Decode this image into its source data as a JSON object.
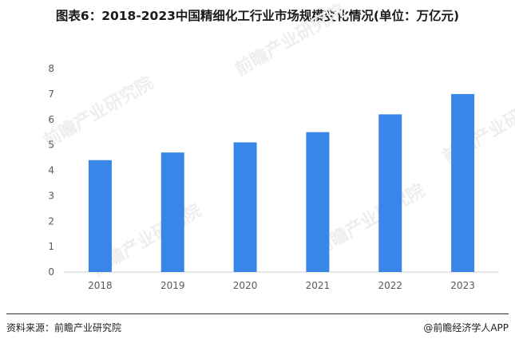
{
  "header": {
    "title": "图表6：2018-2023中国精细化工行业市场规模变化情况(单位：万亿元)"
  },
  "footer": {
    "source": "资料来源：前瞻产业研究院",
    "credit": "@前瞻经济学人APP"
  },
  "watermark": {
    "text": "前瞻产业研究院"
  },
  "colors": {
    "bar": "#3a85e8",
    "axis": "#cfcfcf",
    "tick_text": "#595959",
    "watermark": "#eeeeee"
  },
  "chart_data": {
    "type": "bar",
    "title": "图表6：2018-2023中国精细化工行业市场规模变化情况(单位：万亿元)",
    "categories": [
      "2018",
      "2019",
      "2020",
      "2021",
      "2022",
      "2023"
    ],
    "values": [
      4.4,
      4.7,
      5.1,
      5.5,
      6.2,
      7.0
    ],
    "ylim": [
      0,
      8
    ],
    "yticks": [
      0,
      1,
      2,
      3,
      4,
      5,
      6,
      7,
      8
    ],
    "grid": false,
    "legend": "none"
  }
}
